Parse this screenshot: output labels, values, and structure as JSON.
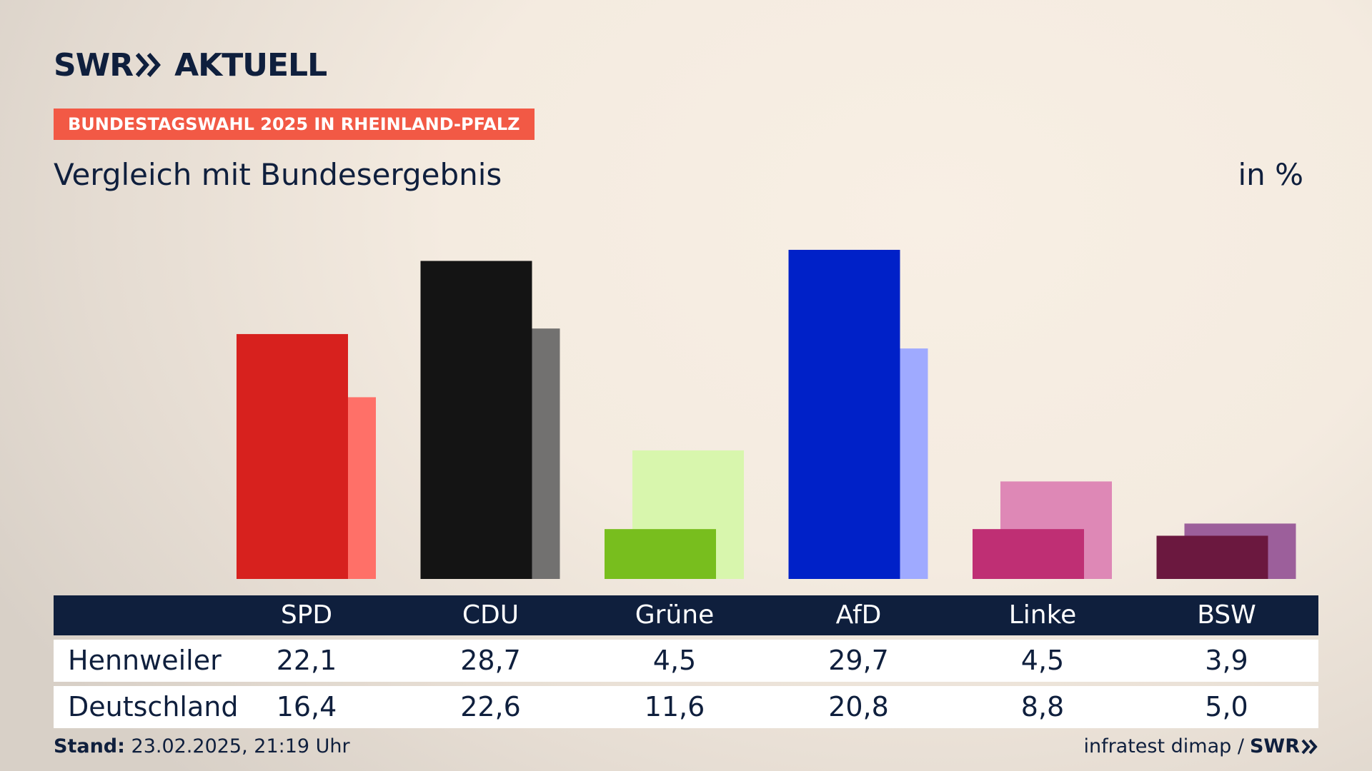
{
  "header": {
    "logo_left": "SWR",
    "logo_right": "AKTUELL",
    "tag": "BUNDESTAGSWAHL 2025 IN RHEINLAND-PFALZ",
    "subtitle": "Vergleich mit Bundesergebnis",
    "unit": "in %"
  },
  "colors": {
    "navy": "#0f1f3d",
    "tag_bg": "#f25945"
  },
  "chart_data": {
    "type": "bar",
    "title": "Vergleich mit Bundesergebnis",
    "unit": "in %",
    "categories": [
      "SPD",
      "CDU",
      "Grüne",
      "AfD",
      "Linke",
      "BSW"
    ],
    "series": [
      {
        "name": "Hennweiler",
        "values": [
          22.1,
          28.7,
          4.5,
          29.7,
          4.5,
          3.9
        ],
        "colors": [
          "#d7211e",
          "#141414",
          "#78be1e",
          "#0021c8",
          "#bf2f74",
          "#6b183f"
        ]
      },
      {
        "name": "Deutschland",
        "values": [
          16.4,
          22.6,
          11.6,
          20.8,
          8.8,
          5.0
        ],
        "colors": [
          "#ff7068",
          "#727170",
          "#d8f6ad",
          "#9faaff",
          "#de88b6",
          "#9c5f9b"
        ]
      }
    ],
    "ylim": [
      0,
      30.6
    ],
    "grid": false,
    "legend": "table below chart"
  },
  "table": {
    "rows": [
      {
        "label": "Hennweiler",
        "values": [
          "22,1",
          "28,7",
          "4,5",
          "29,7",
          "4,5",
          "3,9"
        ]
      },
      {
        "label": "Deutschland",
        "values": [
          "16,4",
          "22,6",
          "11,6",
          "20,8",
          "8,8",
          "5,0"
        ]
      }
    ]
  },
  "footer": {
    "stand_label": "Stand:",
    "stand_value": "23.02.2025, 21:19 Uhr",
    "source": "infratest dimap /",
    "source_logo": "SWR"
  }
}
